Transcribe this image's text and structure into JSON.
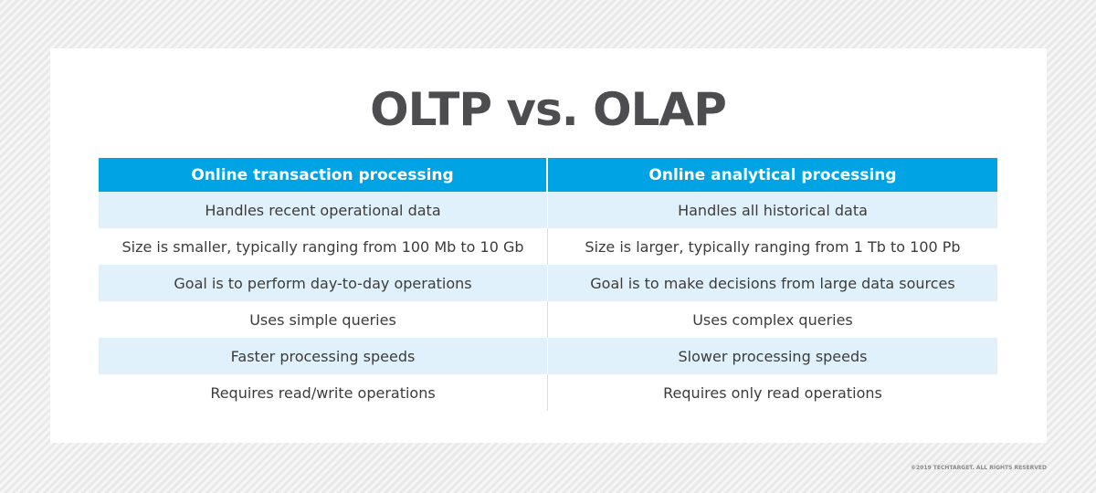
{
  "title": "OLTP vs. OLAP",
  "table": {
    "headers": [
      "Online transaction processing",
      "Online analytical processing"
    ],
    "rows": [
      [
        "Handles recent operational data",
        "Handles all historical data"
      ],
      [
        "Size is smaller, typically ranging from 100 Mb to 10 Gb",
        "Size is larger, typically ranging from 1 Tb to 100 Pb"
      ],
      [
        "Goal is to perform day-to-day operations",
        "Goal is to make decisions from large data sources"
      ],
      [
        "Uses simple queries",
        "Uses complex queries"
      ],
      [
        "Faster processing speeds",
        "Slower processing speeds"
      ],
      [
        "Requires read/write operations",
        "Requires only read operations"
      ]
    ]
  },
  "copyright": "©2019 TECHTARGET. ALL RIGHTS RESERVED",
  "colors": {
    "header_bg": "#00a3e4",
    "shaded_row_bg": "#e1f1fb",
    "title_text": "#4d4d4f"
  }
}
